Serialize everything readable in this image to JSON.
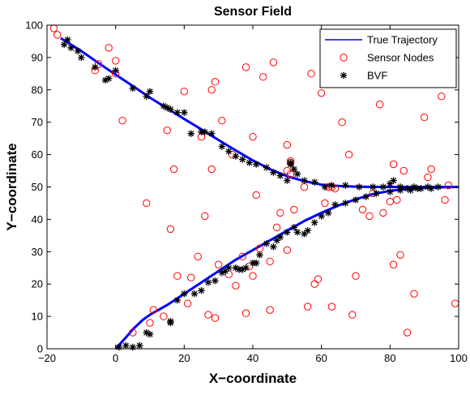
{
  "chart_data": {
    "type": "scatter",
    "title": "Sensor Field",
    "xlabel": "X−coordinate",
    "ylabel": "Y−coordinate",
    "xlim": [
      -20,
      100
    ],
    "ylim": [
      0,
      100
    ],
    "xticks": [
      -20,
      0,
      20,
      40,
      60,
      80,
      100
    ],
    "yticks": [
      0,
      10,
      20,
      30,
      40,
      50,
      60,
      70,
      80,
      90,
      100
    ],
    "grid": false,
    "legend_position": "top-right",
    "series": [
      {
        "name": "True Trajectory",
        "kind": "line",
        "color": "#0000ff",
        "branches": [
          {
            "x": [
              -16,
              -10,
              -5,
              0,
              5,
              10,
              15,
              20,
              25,
              30,
              35,
              40,
              45,
              50,
              55,
              60,
              65,
              70,
              75,
              80,
              85,
              90,
              95,
              100
            ],
            "y": [
              96,
              92,
              88.3,
              84.7,
              81.2,
              77.6,
              74.3,
              71,
              67.8,
              64.5,
              61.3,
              58.2,
              55.5,
              53.3,
              51.8,
              50.7,
              50.3,
              50.1,
              50,
              50,
              50,
              50,
              50,
              50
            ]
          },
          {
            "x": [
              0,
              3,
              5,
              8,
              10,
              15,
              20,
              25,
              30,
              35,
              40,
              45,
              50,
              55,
              60,
              65,
              70,
              75,
              80,
              85,
              90,
              95,
              100
            ],
            "y": [
              0,
              3.5,
              6,
              9,
              10.5,
              13.5,
              17,
              20.5,
              24,
              27.5,
              30.5,
              33.5,
              36.5,
              39.5,
              42,
              44.3,
              46.2,
              47.8,
              48.8,
              49.4,
              49.7,
              49.9,
              50
            ]
          }
        ]
      },
      {
        "name": "Sensor Nodes",
        "kind": "markers",
        "marker": "circle",
        "color": "#ff0000",
        "x": [
          -18,
          -17,
          -6,
          -5,
          -2,
          0,
          0,
          2,
          5,
          9,
          10,
          11,
          14,
          15,
          16,
          17,
          18,
          20,
          21,
          22,
          24,
          25,
          26,
          27,
          28,
          28,
          29,
          29,
          30,
          31,
          33,
          34,
          35,
          37,
          38,
          38,
          39,
          40,
          40,
          41,
          42,
          43,
          45,
          45,
          46,
          47,
          48,
          50,
          50,
          50,
          51,
          51,
          51,
          52,
          55,
          56,
          57,
          58,
          59,
          60,
          61,
          62,
          63,
          63,
          64,
          66,
          68,
          69,
          70,
          72,
          74,
          75,
          77,
          78,
          80,
          81,
          81,
          82,
          83,
          84,
          85,
          87,
          90,
          91,
          92,
          95,
          96,
          97,
          99
        ],
        "y": [
          99,
          97,
          86,
          88,
          93,
          85,
          89,
          70.5,
          5,
          45,
          8,
          12,
          10,
          67.5,
          37,
          55.5,
          22.5,
          79.5,
          14,
          22,
          28.5,
          65.5,
          41,
          10.5,
          80,
          55.5,
          9.5,
          82.5,
          26,
          70.5,
          23,
          60,
          19.5,
          28.5,
          87,
          11,
          25.5,
          65.5,
          22.5,
          47.5,
          31,
          84,
          12,
          27,
          88.5,
          37.5,
          42,
          63,
          55,
          30.5,
          54,
          57.5,
          58,
          43,
          50,
          13,
          85,
          20,
          21.5,
          79,
          45,
          50,
          13,
          50,
          49.5,
          70,
          60,
          10.5,
          22.5,
          43,
          41,
          48,
          75.5,
          42,
          45.5,
          57,
          26,
          46,
          29,
          55,
          5,
          17,
          71.5,
          53,
          55.5,
          78,
          46,
          50.5,
          14
        ]
      },
      {
        "name": "BVF",
        "kind": "markers",
        "marker": "asterisk",
        "color": "#000000",
        "x": [
          -15,
          -14,
          -13,
          -11,
          -10,
          -6,
          -3,
          -2,
          0,
          5,
          9,
          10,
          14,
          15,
          16,
          18,
          20,
          22,
          25,
          26,
          28,
          31,
          33,
          35,
          37,
          39,
          41,
          44,
          46,
          48,
          50,
          51,
          51,
          52,
          53,
          55,
          58,
          61,
          63,
          67,
          71,
          75,
          78,
          80,
          81,
          83,
          85,
          87,
          89,
          92,
          1,
          3,
          5,
          7,
          9,
          10,
          16,
          16,
          18,
          20,
          23,
          25,
          27,
          29,
          31,
          32,
          33,
          35,
          36,
          37,
          38,
          40,
          41,
          42,
          44,
          46,
          47,
          48,
          50,
          52,
          53,
          55,
          56,
          58,
          60,
          62,
          64,
          67,
          70,
          73,
          76,
          80,
          83,
          86,
          88,
          91,
          94
        ],
        "y": [
          94,
          95.5,
          93,
          92,
          90,
          87,
          83,
          83.5,
          86,
          80.5,
          78,
          79.5,
          75,
          74.5,
          74,
          73,
          73,
          66.5,
          67,
          67,
          66.5,
          62.5,
          61,
          59.5,
          58.5,
          57.5,
          57,
          56,
          54.5,
          53.5,
          52,
          57,
          57.5,
          55.5,
          54,
          52,
          51.5,
          50,
          50.5,
          50.5,
          50,
          50,
          50,
          51,
          52,
          50,
          49.5,
          50,
          49.5,
          49.5,
          0.5,
          1,
          0.5,
          1,
          5,
          4.5,
          8,
          8.5,
          15,
          17,
          17,
          18,
          20.5,
          21,
          23.5,
          24,
          25,
          25,
          24.5,
          24.5,
          25,
          26.5,
          26.5,
          29,
          32.5,
          31.5,
          33.5,
          34.5,
          36,
          37.5,
          36,
          35.5,
          36.5,
          39,
          41,
          42,
          44.5,
          45,
          46,
          47,
          48,
          48.5,
          49,
          49,
          49.5,
          50,
          50
        ]
      }
    ]
  }
}
